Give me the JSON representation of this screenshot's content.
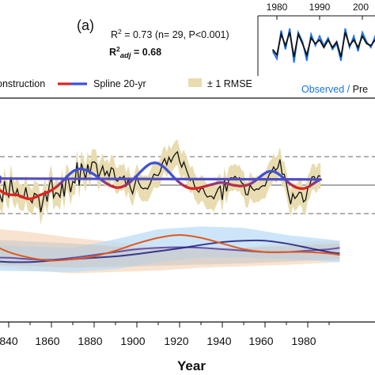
{
  "panel_label": "(a)",
  "stats": {
    "r2_prefix": "R",
    "r2_exp": "2",
    "r2_rest": " = 0.73 (n= 29, P<0.001)",
    "r2adj_prefix": "R",
    "r2adj_exp": "2",
    "r2adj_sub": "adj",
    "r2adj_rest": " = 0.68"
  },
  "legend": {
    "reconstruction": "onstruction",
    "spline": "Spline 20-yr",
    "rmse": "± 1 RMSE"
  },
  "inset": {
    "ticks": [
      "1980",
      "1990",
      "200"
    ],
    "observed_label": "Observed",
    "separator": " / ",
    "predicted_label": "Pre",
    "chart_data": {
      "type": "line",
      "x": [
        1979,
        1980,
        1981,
        1982,
        1983,
        1984,
        1985,
        1986,
        1987,
        1988,
        1989,
        1990,
        1991,
        1992,
        1993,
        1994,
        1995,
        1996,
        1997,
        1998,
        1999,
        2000,
        2001,
        2002,
        2003,
        2004,
        2005,
        2006,
        2007
      ],
      "series": [
        {
          "name": "Observed",
          "values": [
            -0.2,
            -0.6,
            0.9,
            -0.1,
            1.0,
            -0.8,
            0.8,
            0.3,
            -0.7,
            0.7,
            0.1,
            0.6,
            0.1,
            0.5,
            -0.1,
            0.2,
            -0.7,
            1.0,
            0.0,
            0.6,
            -0.2,
            0.8,
            0.3,
            0.0,
            0.6,
            -0.1,
            0.5,
            0.0,
            0.4
          ]
        },
        {
          "name": "Predicted",
          "values": [
            -0.1,
            -0.4,
            0.7,
            0.1,
            0.8,
            -0.5,
            0.7,
            0.2,
            -0.4,
            0.5,
            0.2,
            0.4,
            0.0,
            0.4,
            0.0,
            0.3,
            -0.5,
            0.8,
            0.1,
            0.4,
            0.0,
            0.6,
            0.2,
            0.1,
            0.4,
            0.1,
            0.4,
            0.1,
            0.3
          ]
        }
      ],
      "xlim": [
        1975,
        2010
      ],
      "ylim": [
        -1.2,
        1.2
      ]
    }
  },
  "colors": {
    "reconstruction": "#111111",
    "spline_cool": "#3f51d8",
    "spline_warm": "#dd2222",
    "rmse_band": "#e8dcb0",
    "observed": "#1a73e8",
    "lower_blue_band": "#bcdcf5",
    "lower_orange_band": "#f8dcc4",
    "lower_gray_band": "#c6c6c6",
    "lower_orange_line": "#e0591e",
    "lower_navy_line": "#1c1c80",
    "lower_purple_line": "#6a52a6"
  },
  "xaxis": {
    "title": "Year",
    "ticks": [
      "840",
      "1860",
      "1880",
      "1900",
      "1920",
      "1940",
      "1960",
      "1980"
    ]
  },
  "chart_data": {
    "type": "line",
    "xlim": [
      1830,
      1995
    ],
    "ylim": [
      -3.6,
      3.6
    ],
    "grid": false,
    "reference_lines": [
      1,
      0,
      -1
    ],
    "x_start": 1834,
    "reconstruction": [
      -0.18,
      -0.05,
      -0.38,
      -0.6,
      0.14,
      -0.25,
      -0.41,
      0.28,
      -0.2,
      -0.37,
      -0.14,
      -0.41,
      -0.44,
      -0.46,
      -0.08,
      -0.47,
      -0.51,
      -0.62,
      -0.29,
      -0.33,
      -0.41,
      -0.95,
      -0.57,
      -0.2,
      -0.58,
      0.0,
      0.28,
      -0.44,
      -0.27,
      -0.29,
      -0.42,
      0.08,
      -0.4,
      0.3,
      0.16,
      -0.25,
      0.13,
      0.08,
      0.8,
      -0.02,
      0.76,
      0.51,
      0.2,
      0.73,
      0.38,
      0.8,
      0.82,
      0.75,
      0.25,
      0.46,
      0.67,
      0.35,
      0.49,
      0.3,
      0.61,
      0.56,
      0.19,
      0.14,
      0.28,
      0.24,
      0.32,
      -0.02,
      0.22,
      -0.11,
      -0.3,
      0.01,
      0.3,
      0.06,
      -0.08,
      -0.13,
      -0.1,
      -0.14,
      0.01,
      0.2,
      0.39,
      0.35,
      0.34,
      0.48,
      0.78,
      0.93,
      0.71,
      0.98,
      0.81,
      0.99,
      1.1,
      1.17,
      0.84,
      0.63,
      0.81,
      0.58,
      0.37,
      0.16,
      0.23,
      -0.03,
      -0.16,
      -0.25,
      -0.11,
      -0.12,
      -0.31,
      -0.42,
      -0.39,
      -0.39,
      -0.48,
      -0.3,
      -0.13,
      -0.04,
      -0.52,
      0.17,
      -0.22,
      0.17,
      0.26,
      0.24,
      0.31,
      0.21,
      0.26,
      0.08,
      0.03,
      -0.33,
      -0.34,
      0.01,
      -0.12,
      -0.19,
      -0.13,
      -0.15,
      -0.06,
      -0.02,
      -0.03,
      0.18,
      0.38,
      0.45,
      0.64,
      0.52,
      0.61,
      0.9,
      0.39,
      0.38,
      0.05,
      -0.34,
      -0.67,
      -0.3,
      -0.47,
      -0.38,
      -0.25,
      -0.27,
      -0.59,
      -0.52,
      -0.12,
      0.02,
      0.29,
      0.3,
      0.15,
      0.33,
      0.31
    ],
    "spline": [
      -0.08,
      -0.13,
      -0.19,
      -0.24,
      -0.28,
      -0.31,
      -0.33,
      -0.34,
      -0.34,
      -0.34,
      -0.35,
      -0.37,
      -0.4,
      -0.43,
      -0.46,
      -0.48,
      -0.48,
      -0.47,
      -0.44,
      -0.41,
      -0.37,
      -0.34,
      -0.31,
      -0.28,
      -0.25,
      -0.22,
      -0.18,
      -0.13,
      -0.08,
      -0.02,
      0.05,
      0.12,
      0.2,
      0.28,
      0.35,
      0.42,
      0.48,
      0.52,
      0.55,
      0.57,
      0.57,
      0.55,
      0.53,
      0.5,
      0.46,
      0.42,
      0.37,
      0.32,
      0.27,
      0.21,
      0.15,
      0.1,
      0.05,
      0.01,
      -0.03,
      -0.06,
      -0.08,
      -0.09,
      -0.08,
      -0.06,
      -0.03,
      0.01,
      0.06,
      0.12,
      0.19,
      0.26,
      0.33,
      0.41,
      0.49,
      0.56,
      0.63,
      0.69,
      0.74,
      0.77,
      0.78,
      0.78,
      0.76,
      0.72,
      0.67,
      0.61,
      0.54,
      0.46,
      0.38,
      0.3,
      0.22,
      0.15,
      0.09,
      0.03,
      -0.02,
      -0.06,
      -0.09,
      -0.11,
      -0.12,
      -0.12,
      -0.11,
      -0.1,
      -0.08,
      -0.06,
      -0.04,
      -0.02,
      0.0,
      0.02,
      0.04,
      0.06,
      0.08,
      0.09,
      0.09,
      0.08,
      0.06,
      0.04,
      0.02,
      0.0,
      -0.01,
      -0.02,
      -0.03,
      -0.03,
      -0.02,
      -0.01,
      0.01,
      0.04,
      0.08,
      0.13,
      0.19,
      0.25,
      0.31,
      0.37,
      0.42,
      0.46,
      0.48,
      0.49,
      0.48,
      0.45,
      0.41,
      0.35,
      0.29,
      0.22,
      0.15,
      0.09,
      0.03,
      -0.02,
      -0.06,
      -0.09,
      -0.11,
      -0.12,
      -0.12,
      -0.1,
      -0.07,
      -0.03,
      0.02,
      0.07,
      0.12,
      0.16,
      0.2,
      0.23,
      0.26,
      0.28,
      0.29,
      0.29,
      0.28,
      0.26,
      0.23,
      0.19,
      0.15,
      0.1
    ],
    "rmse": 0.45,
    "lower": {
      "x": [
        1830,
        1840,
        1850,
        1860,
        1870,
        1880,
        1890,
        1900,
        1910,
        1920,
        1930,
        1940,
        1950,
        1960,
        1970,
        1980,
        1990,
        1995
      ],
      "orange": [
        -2.0,
        -2.35,
        -2.55,
        -2.65,
        -2.6,
        -2.5,
        -2.3,
        -2.05,
        -1.85,
        -1.75,
        -1.85,
        -2.05,
        -2.25,
        -2.35,
        -2.35,
        -2.35,
        -2.4,
        -2.45
      ],
      "navy": [
        -2.65,
        -2.7,
        -2.7,
        -2.65,
        -2.6,
        -2.55,
        -2.5,
        -2.42,
        -2.32,
        -2.22,
        -2.1,
        -2.0,
        -1.95,
        -1.95,
        -2.05,
        -2.2,
        -2.35,
        -2.4
      ],
      "purple": [
        -2.55,
        -2.55,
        -2.6,
        -2.62,
        -2.55,
        -2.45,
        -2.35,
        -2.25,
        -2.2,
        -2.18,
        -2.2,
        -2.25,
        -2.3,
        -2.35,
        -2.35,
        -2.3,
        -2.25,
        -2.2
      ],
      "blue_band": [
        [
          1830,
          -2.1,
          -3.0
        ],
        [
          1870,
          -2.2,
          -3.05
        ],
        [
          1890,
          -1.9,
          -2.95
        ],
        [
          1910,
          -1.55,
          -2.7
        ],
        [
          1930,
          -1.45,
          -2.55
        ],
        [
          1950,
          -1.5,
          -2.55
        ],
        [
          1970,
          -1.75,
          -2.6
        ],
        [
          1995,
          -1.95,
          -2.7
        ]
      ],
      "orange_band": [
        [
          1830,
          -1.5,
          -2.8
        ],
        [
          1850,
          -1.65,
          -3.0
        ],
        [
          1870,
          -1.85,
          -3.1
        ],
        [
          1890,
          -2.0,
          -3.05
        ],
        [
          1910,
          -2.15,
          -3.0
        ],
        [
          1930,
          -2.3,
          -2.9
        ],
        [
          1950,
          -2.2,
          -2.85
        ],
        [
          1970,
          -2.0,
          -2.8
        ],
        [
          1995,
          -1.95,
          -2.7
        ]
      ],
      "gray_band": [
        [
          1830,
          -1.9,
          -2.8
        ],
        [
          1870,
          -2.05,
          -2.9
        ],
        [
          1900,
          -2.2,
          -2.85
        ],
        [
          1950,
          -2.2,
          -2.75
        ],
        [
          1995,
          -2.05,
          -2.6
        ]
      ]
    }
  }
}
